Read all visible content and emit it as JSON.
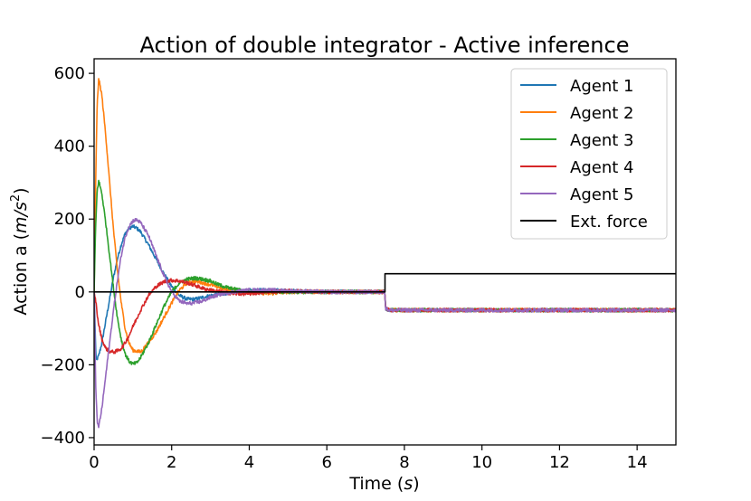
{
  "chart_data": {
    "type": "line",
    "title": "Action of double integrator - Active inference",
    "xlabel_main": "Time (",
    "xlabel_unit": "s",
    "xlabel_tail": ")",
    "ylabel_main": "Action a (",
    "ylabel_unit": "m/s",
    "ylabel_exp": "2",
    "ylabel_tail": ")",
    "xlim": [
      0,
      15
    ],
    "ylim": [
      -420,
      640
    ],
    "xticks": [
      0,
      2,
      4,
      6,
      8,
      10,
      12,
      14
    ],
    "xtick_labels": [
      "0",
      "2",
      "4",
      "6",
      "8",
      "10",
      "12",
      "14"
    ],
    "yticks": [
      -400,
      -200,
      0,
      200,
      400,
      600
    ],
    "ytick_labels": [
      "−400",
      "−200",
      "0",
      "200",
      "400",
      "600"
    ],
    "grid": false,
    "legend_position": "top-right",
    "noise_amplitude": 5,
    "series": [
      {
        "name": "Agent 1",
        "color": "#1f77b4",
        "x": [
          0,
          0.05,
          0.12,
          0.2,
          0.3,
          0.4,
          0.5,
          0.6,
          0.7,
          0.8,
          0.9,
          1.0,
          1.1,
          1.2,
          1.4,
          1.6,
          1.8,
          2.0,
          2.2,
          2.4,
          2.6,
          2.8,
          3.0,
          3.3,
          3.6,
          4.0,
          4.5,
          5.0,
          6.0,
          7.0,
          7.49,
          7.52,
          7.6,
          8.0,
          15.0
        ],
        "y": [
          0,
          -190,
          -175,
          -140,
          -80,
          -20,
          40,
          90,
          130,
          160,
          175,
          180,
          175,
          165,
          130,
          90,
          50,
          15,
          -10,
          -20,
          -20,
          -15,
          -10,
          -5,
          0,
          5,
          5,
          3,
          0,
          0,
          0,
          -45,
          -50,
          -50,
          -50
        ]
      },
      {
        "name": "Agent 2",
        "color": "#ff7f0e",
        "x": [
          0,
          0.04,
          0.08,
          0.12,
          0.2,
          0.3,
          0.4,
          0.5,
          0.6,
          0.7,
          0.8,
          0.9,
          1.0,
          1.2,
          1.4,
          1.6,
          1.8,
          2.0,
          2.2,
          2.4,
          2.6,
          2.8,
          3.0,
          3.3,
          3.6,
          4.0,
          4.5,
          5.0,
          6.0,
          7.0,
          7.49,
          7.52,
          7.6,
          8.0,
          15.0
        ],
        "y": [
          0,
          300,
          520,
          585,
          540,
          430,
          300,
          170,
          60,
          -30,
          -100,
          -140,
          -160,
          -165,
          -140,
          -110,
          -70,
          -30,
          5,
          25,
          30,
          25,
          20,
          10,
          5,
          0,
          -5,
          0,
          0,
          0,
          0,
          -45,
          -50,
          -50,
          -50
        ]
      },
      {
        "name": "Agent 3",
        "color": "#2ca02c",
        "x": [
          0,
          0.04,
          0.08,
          0.12,
          0.2,
          0.3,
          0.4,
          0.5,
          0.6,
          0.7,
          0.8,
          0.9,
          1.0,
          1.1,
          1.2,
          1.4,
          1.6,
          1.8,
          2.0,
          2.2,
          2.4,
          2.6,
          2.8,
          3.0,
          3.2,
          3.5,
          4.0,
          4.5,
          5.0,
          6.0,
          7.0,
          7.49,
          7.52,
          7.6,
          8.0,
          15.0
        ],
        "y": [
          0,
          180,
          280,
          305,
          270,
          190,
          100,
          10,
          -70,
          -130,
          -170,
          -190,
          -198,
          -195,
          -180,
          -140,
          -90,
          -40,
          0,
          25,
          35,
          38,
          35,
          30,
          20,
          10,
          0,
          0,
          0,
          0,
          0,
          0,
          -45,
          -50,
          -50,
          -50
        ]
      },
      {
        "name": "Agent 4",
        "color": "#d62728",
        "x": [
          0,
          0.05,
          0.1,
          0.2,
          0.3,
          0.4,
          0.5,
          0.6,
          0.7,
          0.8,
          0.9,
          1.0,
          1.2,
          1.4,
          1.6,
          1.8,
          2.0,
          2.2,
          2.4,
          2.6,
          2.8,
          3.0,
          3.3,
          3.6,
          4.0,
          4.5,
          5.0,
          6.0,
          7.0,
          7.49,
          7.52,
          7.6,
          8.0,
          15.0
        ],
        "y": [
          0,
          -30,
          -80,
          -130,
          -155,
          -163,
          -165,
          -162,
          -155,
          -140,
          -120,
          -95,
          -50,
          -10,
          15,
          28,
          32,
          30,
          25,
          18,
          10,
          5,
          0,
          -5,
          -5,
          0,
          3,
          0,
          0,
          0,
          -45,
          -50,
          -50,
          -50
        ]
      },
      {
        "name": "Agent 5",
        "color": "#9467bd",
        "x": [
          0,
          0.04,
          0.08,
          0.12,
          0.2,
          0.3,
          0.4,
          0.5,
          0.6,
          0.7,
          0.8,
          0.9,
          1.0,
          1.1,
          1.2,
          1.4,
          1.6,
          1.8,
          2.0,
          2.2,
          2.4,
          2.6,
          2.8,
          3.0,
          3.3,
          3.6,
          4.0,
          4.5,
          5.0,
          6.0,
          7.0,
          7.49,
          7.52,
          7.6,
          8.0,
          15.0
        ],
        "y": [
          0,
          -250,
          -360,
          -370,
          -320,
          -230,
          -140,
          -50,
          30,
          100,
          150,
          180,
          195,
          198,
          190,
          155,
          100,
          45,
          0,
          -25,
          -32,
          -30,
          -25,
          -15,
          -5,
          0,
          5,
          5,
          3,
          0,
          0,
          0,
          -45,
          -50,
          -50,
          -50
        ]
      },
      {
        "name": "Ext. force",
        "color": "#000000",
        "noiseless": true,
        "x": [
          0,
          7.5,
          7.5,
          15.0
        ],
        "y": [
          0,
          0,
          50,
          50
        ]
      }
    ]
  }
}
